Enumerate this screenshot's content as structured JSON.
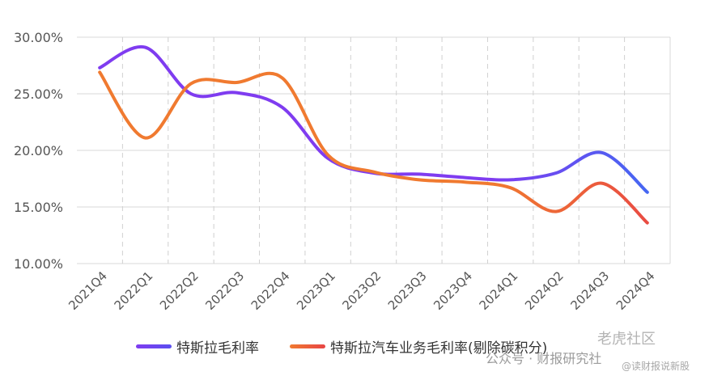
{
  "chart_data": {
    "type": "line",
    "categories": [
      "2021Q4",
      "2022Q1",
      "2022Q2",
      "2022Q3",
      "2022Q4",
      "2023Q1",
      "2023Q2",
      "2023Q3",
      "2023Q4",
      "2024Q1",
      "2024Q2",
      "2024Q3",
      "2024Q4"
    ],
    "series": [
      {
        "name": "特斯拉毛利率",
        "color": "#7f3cf0",
        "end_color": "#3d6df2",
        "values": [
          27.3,
          29.1,
          25.0,
          25.1,
          23.8,
          19.3,
          18.0,
          17.9,
          17.6,
          17.4,
          18.0,
          19.8,
          16.3
        ]
      },
      {
        "name": "特斯拉汽车业务毛利率(剔除碳积分)",
        "color": "#f07a30",
        "end_color": "#e84545",
        "values": [
          26.9,
          21.1,
          25.9,
          26.0,
          26.4,
          19.6,
          18.1,
          17.4,
          17.2,
          16.7,
          14.6,
          17.1,
          13.6
        ]
      }
    ],
    "y_ticks": [
      "30.00%",
      "25.00%",
      "20.00%",
      "15.00%",
      "10.00%"
    ],
    "ylim": [
      10,
      30
    ],
    "grid": true,
    "legend_position": "bottom"
  },
  "watermarks": {
    "community": "老虎社区",
    "account": "公众号 · 财报研究社",
    "handle": "@读财报说新股"
  }
}
